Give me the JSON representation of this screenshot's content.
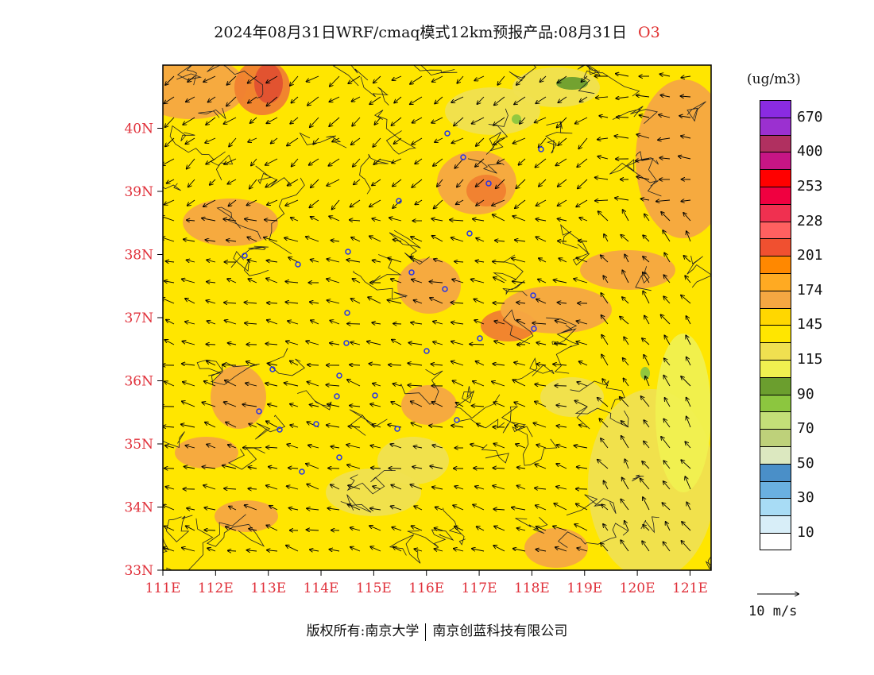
{
  "title": {
    "main": "2024年08月31日WRF/cmaq模式12km预报产品:08月31日",
    "species": "O3"
  },
  "map": {
    "lon_labels": [
      "111E",
      "112E",
      "113E",
      "114E",
      "115E",
      "116E",
      "117E",
      "118E",
      "119E",
      "120E",
      "121E"
    ],
    "lat_labels": [
      "40N",
      "39N",
      "38N",
      "37N",
      "36N",
      "35N",
      "34N",
      "33N"
    ],
    "lon_values": [
      111,
      112,
      113,
      114,
      115,
      116,
      117,
      118,
      119,
      120,
      121
    ],
    "lat_values": [
      40,
      39,
      38,
      37,
      36,
      35,
      34,
      33
    ],
    "lon_range": [
      111,
      121.4
    ],
    "lat_range": [
      33,
      41
    ],
    "base_color": "#ffe600",
    "station_color": "#2233ee"
  },
  "colorbar": {
    "unit": "(ug/m3)",
    "colors": [
      "#8a2be2",
      "#9b30d0",
      "#b03060",
      "#c71585",
      "#ff0000",
      "#f00040",
      "#f03050",
      "#ff6060",
      "#f05030",
      "#ff8800",
      "#ffaa22",
      "#f5a742",
      "#ffd700",
      "#ffe600",
      "#f0e050",
      "#f0f050",
      "#6b9e2e",
      "#8cc63f",
      "#c3df78",
      "#bed17a",
      "#dce8c0",
      "#4a8fc8",
      "#6ab0e0",
      "#a8dcf5",
      "#d8eef8",
      "#ffffff"
    ],
    "labels": [
      "670",
      "400",
      "253",
      "228",
      "201",
      "174",
      "145",
      "115",
      "90",
      "70",
      "50",
      "30",
      "10"
    ]
  },
  "reference_vector": {
    "label": "10 m/s"
  },
  "copyright": {
    "left": "版权所有:南京大学",
    "right": "南京创蓝科技有限公司"
  }
}
